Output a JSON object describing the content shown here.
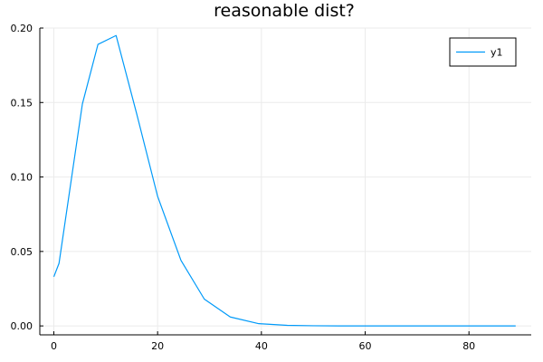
{
  "chart_data": {
    "type": "line",
    "title": "reasonable dist?",
    "xlabel": "",
    "ylabel": "",
    "xlim": [
      -2.7,
      92
    ],
    "ylim": [
      -0.006,
      0.2
    ],
    "x_ticks": [
      0,
      20,
      40,
      60,
      80
    ],
    "x_tick_labels": [
      "0",
      "20",
      "40",
      "60",
      "80"
    ],
    "y_ticks": [
      0,
      0.05,
      0.1,
      0.15,
      0.2
    ],
    "y_tick_labels": [
      "0.00",
      "0.05",
      "0.10",
      "0.15",
      "0.20"
    ],
    "grid": true,
    "legend": {
      "position": "top-right",
      "entries": [
        "y1"
      ]
    },
    "series": [
      {
        "name": "y1",
        "color": "#009af9",
        "x": [
          0,
          1,
          5.5,
          8.5,
          12,
          16,
          20,
          24.5,
          29,
          34,
          39.5,
          45,
          50,
          55,
          60,
          65,
          70,
          75,
          80,
          85,
          89
        ],
        "y": [
          0.033,
          0.042,
          0.149,
          0.189,
          0.195,
          0.142,
          0.087,
          0.044,
          0.018,
          0.006,
          0.0015,
          0.0004,
          0.0001,
          0.0,
          0.0,
          0.0,
          0.0,
          0.0,
          0.0,
          0.0,
          0.0
        ]
      }
    ]
  }
}
